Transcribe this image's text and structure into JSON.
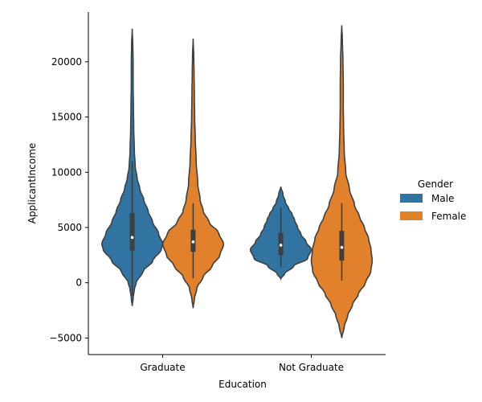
{
  "chart_data": {
    "type": "violin",
    "xlabel": "Education",
    "ylabel": "ApplicantIncome",
    "categories": [
      "Graduate",
      "Not Graduate"
    ],
    "ylim": [
      -6500,
      24500
    ],
    "yticks": [
      -5000,
      0,
      5000,
      10000,
      15000,
      20000
    ],
    "ytick_labels": [
      "−5000",
      "0",
      "5000",
      "10000",
      "15000",
      "20000"
    ],
    "grid": false,
    "legend": {
      "title": "Gender",
      "placement": "right",
      "entries": [
        {
          "name": "Male",
          "color": "#3274a1"
        },
        {
          "name": "Female",
          "color": "#e1812c"
        }
      ]
    },
    "series": [
      {
        "name": "Male",
        "color": "#3274a1",
        "violins": [
          {
            "category": "Graduate",
            "range": [
              -2100,
              23000
            ],
            "quartiles": [
              2900,
              4100,
              6300
            ],
            "whisker": [
              -1200,
              11000
            ],
            "median": 4100,
            "profile": [
              [
                -2100,
                0
              ],
              [
                -1400,
                0.03
              ],
              [
                -600,
                0.07
              ],
              [
                0,
                0.13
              ],
              [
                1000,
                0.35
              ],
              [
                2000,
                0.68
              ],
              [
                3000,
                0.95
              ],
              [
                3500,
                1.0
              ],
              [
                4500,
                0.86
              ],
              [
                5500,
                0.67
              ],
              [
                6500,
                0.52
              ],
              [
                7500,
                0.38
              ],
              [
                8500,
                0.25
              ],
              [
                9500,
                0.16
              ],
              [
                10500,
                0.1
              ],
              [
                12000,
                0.07
              ],
              [
                14000,
                0.05
              ],
              [
                16000,
                0.04
              ],
              [
                18000,
                0.03
              ],
              [
                20000,
                0.03
              ],
              [
                21500,
                0.02
              ],
              [
                23000,
                0
              ]
            ]
          },
          {
            "category": "Not Graduate",
            "range": [
              350,
              8700
            ],
            "quartiles": [
              2500,
              3400,
              4500
            ],
            "whisker": [
              1400,
              6800
            ],
            "median": 3400,
            "profile": [
              [
                350,
                0
              ],
              [
                800,
                0.12
              ],
              [
                1500,
                0.42
              ],
              [
                2200,
                0.88
              ],
              [
                3000,
                1.0
              ],
              [
                3700,
                0.83
              ],
              [
                4400,
                0.66
              ],
              [
                5000,
                0.55
              ],
              [
                5700,
                0.45
              ],
              [
                6200,
                0.37
              ],
              [
                6700,
                0.26
              ],
              [
                7300,
                0.15
              ],
              [
                8000,
                0.07
              ],
              [
                8700,
                0
              ]
            ]
          }
        ]
      },
      {
        "name": "Female",
        "color": "#e1812c",
        "violins": [
          {
            "category": "Graduate",
            "range": [
              -2300,
              22100
            ],
            "quartiles": [
              2800,
              3700,
              4800
            ],
            "whisker": [
              400,
              7200
            ],
            "median": 3700,
            "profile": [
              [
                -2300,
                0
              ],
              [
                -1500,
                0.04
              ],
              [
                -500,
                0.12
              ],
              [
                500,
                0.32
              ],
              [
                1500,
                0.62
              ],
              [
                2500,
                0.88
              ],
              [
                3500,
                1.0
              ],
              [
                4500,
                0.84
              ],
              [
                5500,
                0.52
              ],
              [
                6500,
                0.33
              ],
              [
                7500,
                0.23
              ],
              [
                9000,
                0.15
              ],
              [
                11000,
                0.1
              ],
              [
                13000,
                0.07
              ],
              [
                15000,
                0.05
              ],
              [
                17000,
                0.04
              ],
              [
                19000,
                0.03
              ],
              [
                20500,
                0.02
              ],
              [
                22100,
                0
              ]
            ]
          },
          {
            "category": "Not Graduate",
            "range": [
              -5000,
              23300
            ],
            "quartiles": [
              2000,
              3200,
              4700
            ],
            "whisker": [
              200,
              7200
            ],
            "median": 3200,
            "profile": [
              [
                -5000,
                0
              ],
              [
                -4000,
                0.08
              ],
              [
                -3000,
                0.19
              ],
              [
                -2000,
                0.35
              ],
              [
                -1000,
                0.55
              ],
              [
                0,
                0.78
              ],
              [
                1000,
                0.95
              ],
              [
                2000,
                1.0
              ],
              [
                3000,
                0.96
              ],
              [
                4000,
                0.88
              ],
              [
                5000,
                0.74
              ],
              [
                6000,
                0.58
              ],
              [
                7000,
                0.42
              ],
              [
                8500,
                0.25
              ],
              [
                10000,
                0.13
              ],
              [
                12000,
                0.08
              ],
              [
                14000,
                0.06
              ],
              [
                16000,
                0.05
              ],
              [
                18000,
                0.05
              ],
              [
                20000,
                0.04
              ],
              [
                22000,
                0.02
              ],
              [
                23300,
                0
              ]
            ]
          }
        ]
      }
    ]
  }
}
